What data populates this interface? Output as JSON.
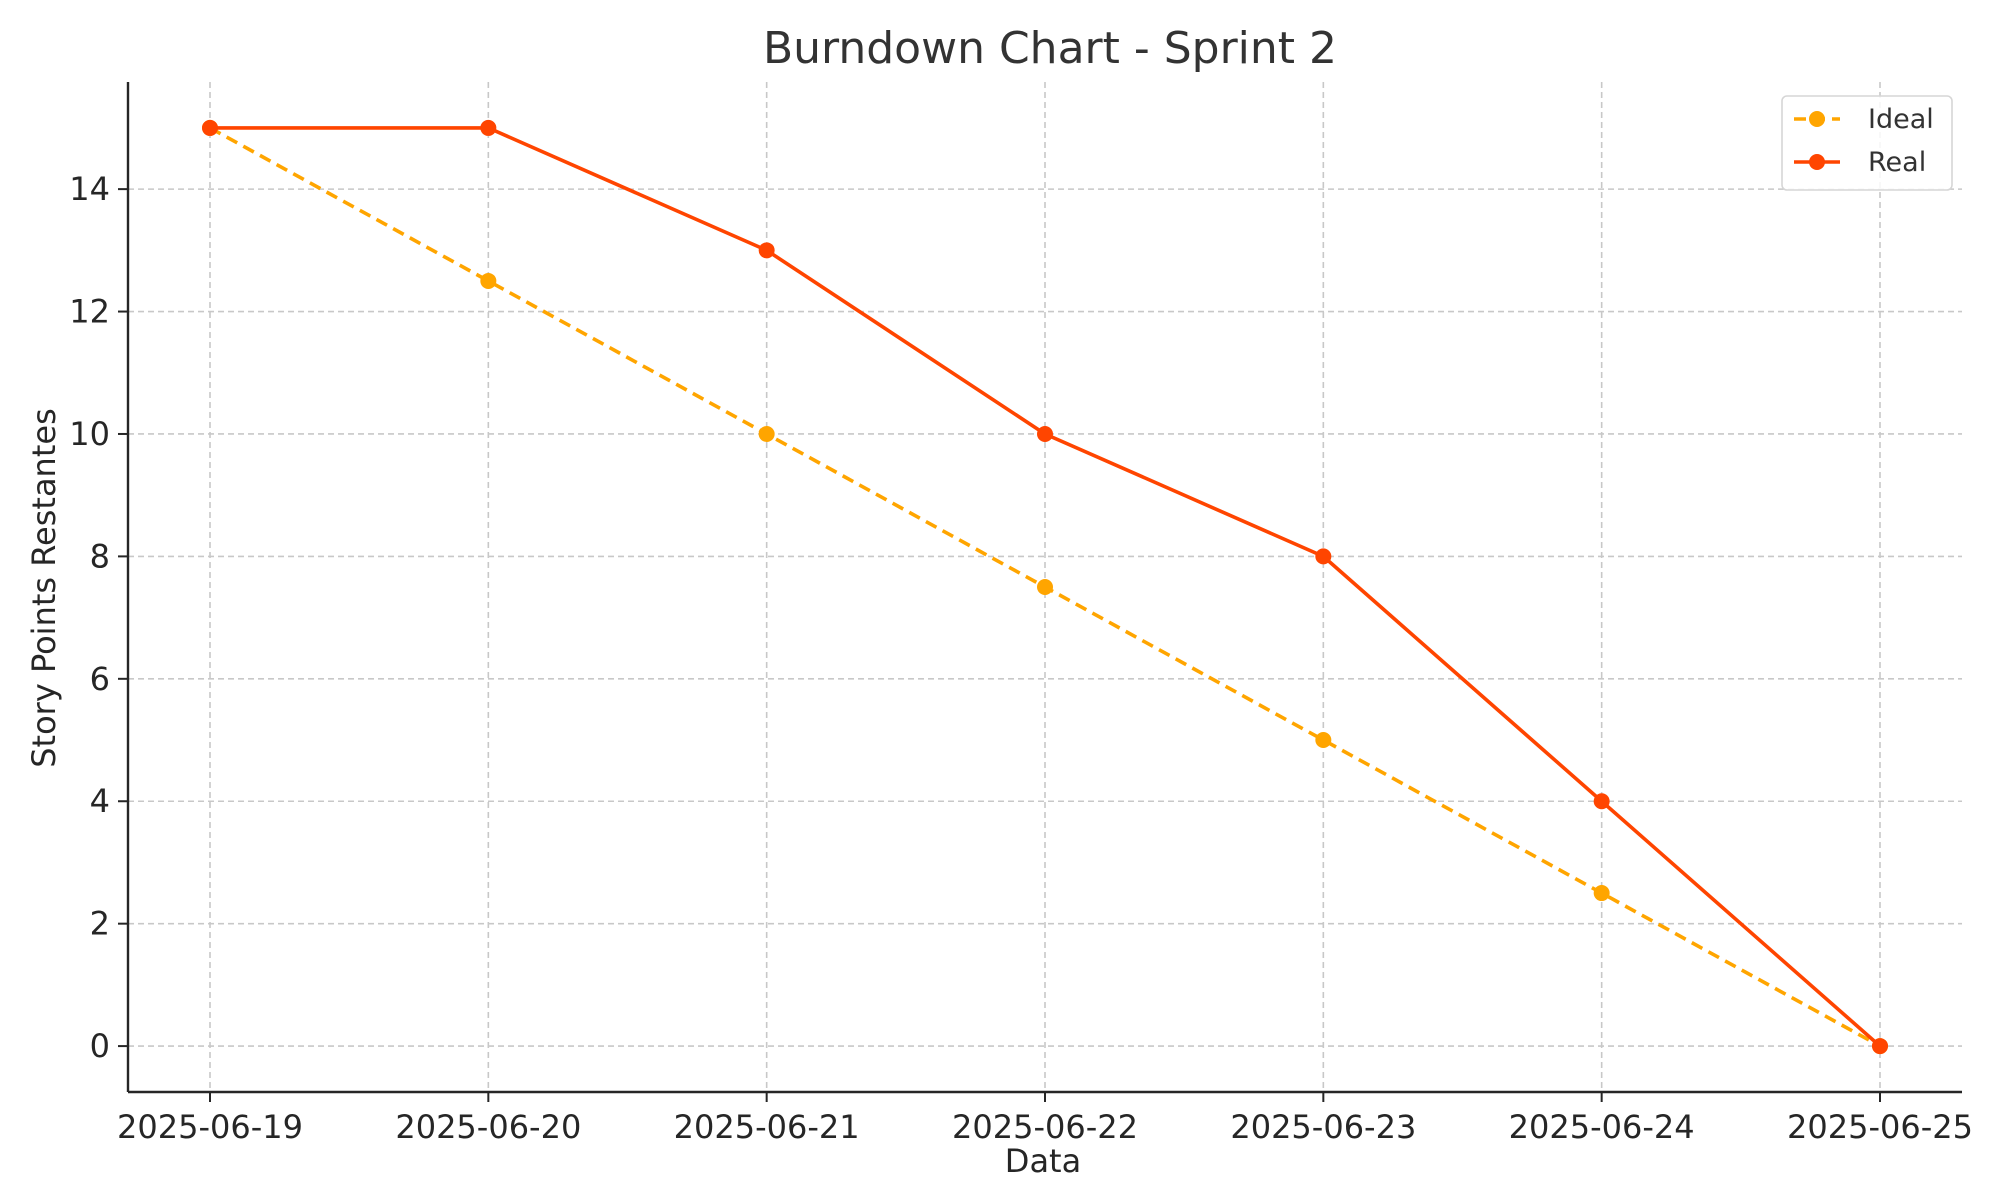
{
  "chart_data": {
    "type": "line",
    "title": "Burndown Chart - Sprint 2",
    "xlabel": "Data",
    "ylabel": "Story Points Restantes",
    "categories": [
      "2025-06-19",
      "2025-06-20",
      "2025-06-21",
      "2025-06-22",
      "2025-06-23",
      "2025-06-24",
      "2025-06-25"
    ],
    "ylim": [
      -0.75,
      15.75
    ],
    "yticks": [
      0,
      2,
      4,
      6,
      8,
      10,
      12,
      14
    ],
    "grid": true,
    "legend_position": "top-right",
    "series": [
      {
        "name": "Ideal",
        "values": [
          15,
          12.5,
          10,
          7.5,
          5,
          2.5,
          0
        ],
        "color": "#FFA500",
        "line_style": "dashed",
        "marker": "circle"
      },
      {
        "name": "Real",
        "values": [
          15,
          15,
          13,
          10,
          8,
          4,
          0
        ],
        "color": "#FF4500",
        "line_style": "solid",
        "marker": "circle"
      }
    ]
  }
}
